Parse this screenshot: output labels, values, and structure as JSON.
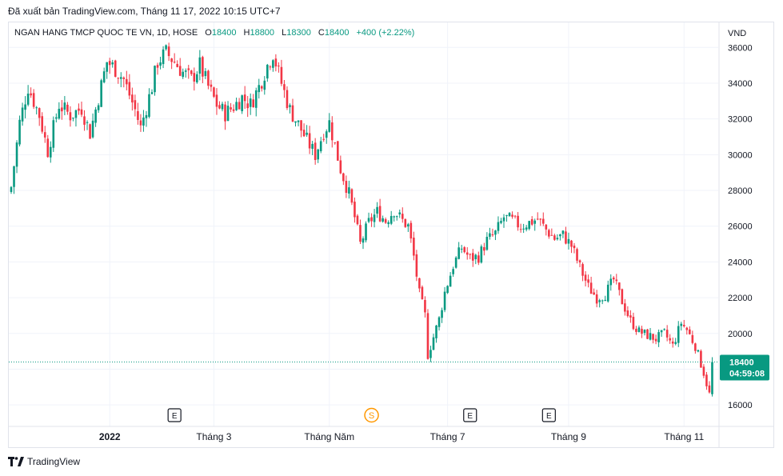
{
  "header": {
    "published": "Đã xuất bản TradingView.com, Tháng 11 17, 2022 10:15 UTC+7"
  },
  "legend": {
    "symbol": "NGAN HANG TMCP QUOC TE VN, 1D, HOSE",
    "o_label": "O",
    "o_value": "18400",
    "h_label": "H",
    "h_value": "18800",
    "l_label": "L",
    "l_value": "18300",
    "c_label": "C",
    "c_value": "18400",
    "change": "+400 (+2.22%)"
  },
  "footer": {
    "brand": "TradingView"
  },
  "colors": {
    "up": "#089981",
    "down": "#f23645",
    "grid": "#f0f3fa",
    "text": "#131722",
    "dividend": "#ff9800",
    "event_border": "#131722"
  },
  "chart_data": {
    "type": "candlestick",
    "currency": "VND",
    "ylim": [
      14800,
      37400
    ],
    "yticks": [
      16000,
      18000,
      20000,
      22000,
      24000,
      26000,
      28000,
      30000,
      32000,
      34000,
      36000
    ],
    "xticks": [
      {
        "label": "2022",
        "bold": true,
        "index": 35
      },
      {
        "label": "Tháng 3",
        "bold": false,
        "index": 72
      },
      {
        "label": "Tháng Năm",
        "bold": false,
        "index": 113
      },
      {
        "label": "Tháng 7",
        "bold": false,
        "index": 155
      },
      {
        "label": "Tháng 9",
        "bold": false,
        "index": 198
      },
      {
        "label": "Tháng 11",
        "bold": false,
        "index": 239
      }
    ],
    "last_price": {
      "value": 18400,
      "label": "18400",
      "countdown": "04:59:08"
    },
    "events": [
      {
        "label": "E",
        "kind": "earnings",
        "index": 58
      },
      {
        "label": "S",
        "kind": "split",
        "index": 128
      },
      {
        "label": "E",
        "kind": "earnings",
        "index": 163
      },
      {
        "label": "E",
        "kind": "earnings",
        "index": 191
      }
    ],
    "anchors": [
      [
        0,
        28200
      ],
      [
        3,
        31800
      ],
      [
        6,
        33800
      ],
      [
        10,
        32200
      ],
      [
        13,
        30200
      ],
      [
        17,
        32800
      ],
      [
        21,
        32200
      ],
      [
        25,
        32600
      ],
      [
        28,
        31200
      ],
      [
        31,
        33200
      ],
      [
        34,
        35200
      ],
      [
        37,
        34800
      ],
      [
        40,
        34200
      ],
      [
        44,
        32500
      ],
      [
        46,
        31500
      ],
      [
        50,
        33800
      ],
      [
        52,
        35200
      ],
      [
        55,
        35700
      ],
      [
        58,
        35200
      ],
      [
        61,
        34600
      ],
      [
        64,
        34200
      ],
      [
        67,
        35000
      ],
      [
        70,
        33800
      ],
      [
        73,
        32800
      ],
      [
        76,
        32300
      ],
      [
        79,
        32700
      ],
      [
        82,
        33200
      ],
      [
        85,
        32800
      ],
      [
        88,
        33800
      ],
      [
        91,
        35000
      ],
      [
        93,
        35700
      ],
      [
        96,
        34000
      ],
      [
        99,
        32500
      ],
      [
        102,
        31700
      ],
      [
        105,
        30800
      ],
      [
        108,
        30000
      ],
      [
        111,
        31300
      ],
      [
        113,
        31800
      ],
      [
        115,
        30500
      ],
      [
        117,
        29200
      ],
      [
        120,
        27800
      ],
      [
        122,
        26500
      ],
      [
        124,
        25000
      ],
      [
        127,
        26200
      ],
      [
        130,
        26800
      ],
      [
        133,
        26300
      ],
      [
        136,
        26900
      ],
      [
        139,
        26300
      ],
      [
        141,
        26000
      ],
      [
        143,
        24300
      ],
      [
        145,
        22200
      ],
      [
        147,
        21000
      ],
      [
        148,
        18800
      ],
      [
        150,
        19800
      ],
      [
        152,
        20800
      ],
      [
        154,
        22300
      ],
      [
        157,
        23800
      ],
      [
        160,
        24800
      ],
      [
        163,
        24200
      ],
      [
        166,
        24300
      ],
      [
        169,
        25200
      ],
      [
        172,
        25600
      ],
      [
        175,
        26500
      ],
      [
        178,
        26300
      ],
      [
        181,
        26000
      ],
      [
        184,
        26200
      ],
      [
        187,
        26400
      ],
      [
        190,
        25800
      ],
      [
        193,
        25300
      ],
      [
        196,
        25500
      ],
      [
        199,
        24900
      ],
      [
        202,
        23700
      ],
      [
        205,
        22600
      ],
      [
        208,
        22000
      ],
      [
        211,
        22200
      ],
      [
        214,
        23000
      ],
      [
        217,
        21800
      ],
      [
        220,
        20700
      ],
      [
        223,
        20100
      ],
      [
        226,
        19900
      ],
      [
        229,
        19700
      ],
      [
        232,
        20000
      ],
      [
        235,
        19300
      ],
      [
        238,
        20600
      ],
      [
        240,
        20200
      ],
      [
        243,
        19300
      ],
      [
        246,
        17800
      ],
      [
        248,
        16600
      ],
      [
        249,
        18400
      ]
    ]
  }
}
